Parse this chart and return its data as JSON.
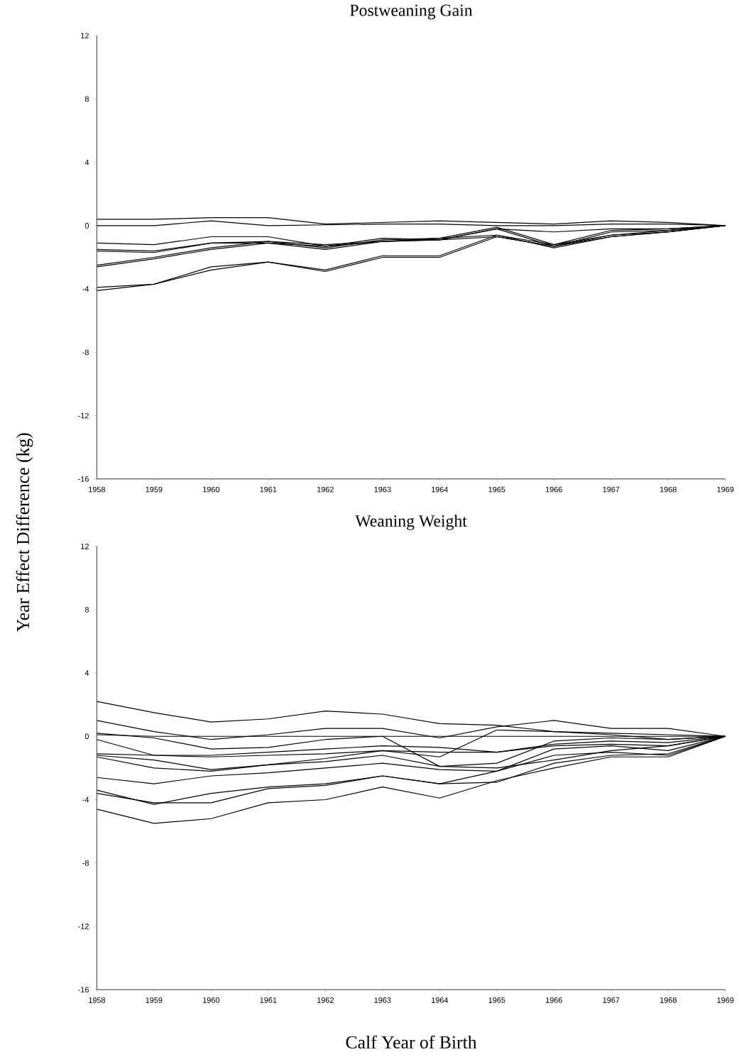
{
  "chart_data": [
    {
      "type": "line",
      "title": "Postweaning Gain",
      "ylabel": "Year Effect Difference (kg)",
      "x": [
        1958,
        1959,
        1960,
        1961,
        1962,
        1963,
        1964,
        1965,
        1966,
        1967,
        1968,
        1969
      ],
      "xlim": [
        1958,
        1969
      ],
      "ylim": [
        -16,
        12
      ],
      "xticks": [
        1958,
        1959,
        1960,
        1961,
        1962,
        1963,
        1964,
        1965,
        1966,
        1967,
        1968,
        1969
      ],
      "yticks": [
        -16,
        -12,
        -8,
        -4,
        0,
        4,
        8,
        12
      ],
      "series": [
        {
          "color": "#000000",
          "values": [
            0.4,
            0.4,
            0.5,
            0.5,
            0.1,
            0.2,
            0.3,
            0.2,
            0.1,
            0.3,
            0.2,
            0
          ]
        },
        {
          "color": "#000000",
          "values": [
            0,
            0,
            0.3,
            0,
            0.05,
            0.1,
            0.1,
            0,
            0,
            0.1,
            0.1,
            0
          ]
        },
        {
          "color": "#000000",
          "values": [
            -1.1,
            -1.2,
            -0.7,
            -0.7,
            -1.3,
            -0.8,
            -0.9,
            -0.2,
            -0.4,
            -0.2,
            -0.2,
            0
          ]
        },
        {
          "color": "#000000",
          "values": [
            -1.5,
            -1.6,
            -1.1,
            -1.0,
            -1.4,
            -0.9,
            -0.8,
            -0.1,
            -1.2,
            -0.3,
            -0.2,
            0
          ]
        },
        {
          "color": "#000000",
          "values": [
            -1.6,
            -1.7,
            -1.1,
            -1.1,
            -1.5,
            -1.0,
            -0.9,
            -0.2,
            -1.3,
            -0.4,
            -0.3,
            0
          ]
        },
        {
          "color": "#000000",
          "values": [
            -2.5,
            -2.0,
            -1.4,
            -1.0,
            -1.2,
            -1.0,
            -0.8,
            -0.6,
            -1.4,
            -0.7,
            -0.4,
            0
          ]
        },
        {
          "color": "#000000",
          "values": [
            -2.6,
            -2.1,
            -1.5,
            -1.1,
            -1.3,
            -1.0,
            -0.9,
            -0.7,
            -1.3,
            -0.6,
            -0.4,
            0
          ]
        },
        {
          "color": "#000000",
          "values": [
            -3.9,
            -3.7,
            -2.6,
            -2.3,
            -2.8,
            -1.9,
            -1.9,
            -0.6,
            -1.2,
            -0.6,
            -0.3,
            0
          ]
        },
        {
          "color": "#000000",
          "values": [
            -4.1,
            -3.7,
            -2.8,
            -2.3,
            -2.9,
            -2.0,
            -2.0,
            -0.7,
            -1.3,
            -0.7,
            -0.4,
            0
          ]
        }
      ]
    },
    {
      "type": "line",
      "title": "Weaning Weight",
      "xlabel": "Calf Year of Birth",
      "x": [
        1958,
        1959,
        1960,
        1961,
        1962,
        1963,
        1964,
        1965,
        1966,
        1967,
        1968,
        1969
      ],
      "xlim": [
        1958,
        1969
      ],
      "ylim": [
        -16,
        12
      ],
      "xticks": [
        1958,
        1959,
        1960,
        1961,
        1962,
        1963,
        1964,
        1965,
        1966,
        1967,
        1968,
        1969
      ],
      "yticks": [
        -16,
        -12,
        -8,
        -4,
        0,
        4,
        8,
        12
      ],
      "series": [
        {
          "color": "#000000",
          "values": [
            2.2,
            1.5,
            0.9,
            1.1,
            1.6,
            1.4,
            0.8,
            0.7,
            0.3,
            0.2,
            0.1,
            0
          ]
        },
        {
          "color": "#000000",
          "values": [
            1.0,
            0.3,
            -0.2,
            0.1,
            0.5,
            0.5,
            -0.1,
            0.6,
            1.0,
            0.5,
            0.5,
            0
          ]
        },
        {
          "color": "#000000",
          "values": [
            0.1,
            0,
            0,
            0,
            0,
            0,
            0,
            0,
            0,
            0,
            0,
            0
          ]
        },
        {
          "color": "#000000",
          "values": [
            0.2,
            -0.1,
            -0.8,
            -0.7,
            -0.2,
            0,
            -1.9,
            -1.7,
            -0.3,
            -0.1,
            -0.2,
            0
          ]
        },
        {
          "color": "#000000",
          "values": [
            -0.2,
            -1.2,
            -1.2,
            -1.0,
            -0.8,
            -0.6,
            -0.7,
            -1.0,
            -0.5,
            -0.3,
            -0.4,
            0
          ]
        },
        {
          "color": "#000000",
          "values": [
            -1.1,
            -1.2,
            -1.3,
            -1.2,
            -1.1,
            -0.9,
            -1.0,
            -1.0,
            -0.6,
            -0.5,
            -0.6,
            0
          ]
        },
        {
          "color": "#000000",
          "values": [
            -1.3,
            -2.0,
            -2.2,
            -1.8,
            -1.4,
            -0.9,
            -1.3,
            0.4,
            0.3,
            0.1,
            -0.2,
            0
          ]
        },
        {
          "color": "#000000",
          "values": [
            -1.2,
            -1.5,
            -2.1,
            -1.8,
            -1.6,
            -1.2,
            -1.9,
            -2.0,
            -1.5,
            -0.9,
            -0.6,
            0
          ]
        },
        {
          "color": "#000000",
          "values": [
            -2.6,
            -3.0,
            -2.5,
            -2.3,
            -2.0,
            -1.7,
            -2.1,
            -2.2,
            -0.8,
            -0.6,
            -0.9,
            0
          ]
        },
        {
          "color": "#000000",
          "values": [
            -3.4,
            -4.3,
            -3.6,
            -3.2,
            -3.0,
            -2.5,
            -3.0,
            -2.9,
            -1.7,
            -1.2,
            -1.1,
            0
          ]
        },
        {
          "color": "#000000",
          "values": [
            -3.6,
            -4.2,
            -4.2,
            -3.3,
            -3.1,
            -2.5,
            -3.0,
            -2.2,
            -1.2,
            -1.0,
            -1.2,
            0
          ]
        },
        {
          "color": "#000000",
          "values": [
            -4.6,
            -5.5,
            -5.2,
            -4.2,
            -4.0,
            -3.2,
            -3.9,
            -2.8,
            -2.0,
            -1.3,
            -1.3,
            0
          ]
        }
      ]
    }
  ]
}
